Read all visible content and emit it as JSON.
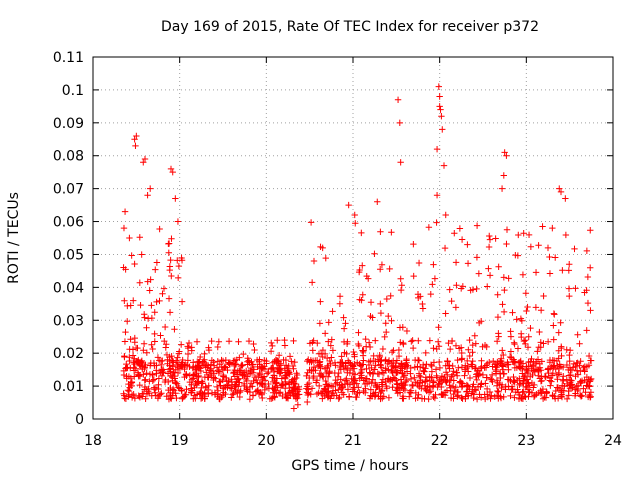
{
  "chart_data": {
    "type": "scatter",
    "title": "Day 169 of 2015, Rate Of TEC Index for receiver p372",
    "xlabel": "GPS time / hours",
    "ylabel": "ROTI / TECUs",
    "xlim": [
      18,
      24
    ],
    "ylim": [
      0,
      0.11
    ],
    "x_ticks": [
      18,
      19,
      20,
      21,
      22,
      23,
      24
    ],
    "x_tick_labels": [
      "18",
      "19",
      "20",
      "21",
      "22",
      "23",
      "24"
    ],
    "y_ticks": [
      0,
      0.01,
      0.02,
      0.03,
      0.04,
      0.05,
      0.06,
      0.07,
      0.08,
      0.09,
      0.1,
      0.11
    ],
    "y_tick_labels": [
      "0",
      "0.01",
      "0.02",
      "0.03",
      "0.04",
      "0.05",
      "0.06",
      "0.07",
      "0.08",
      "0.09",
      "0.1",
      "0.11"
    ],
    "grid": true,
    "marker": "+",
    "color": "#ff0000",
    "x_range_of_points": [
      18.35,
      23.75
    ],
    "dense_band_y": [
      0.005,
      0.02
    ],
    "outliers": [
      {
        "x": 18.48,
        "y": 0.085
      },
      {
        "x": 18.49,
        "y": 0.083
      },
      {
        "x": 18.5,
        "y": 0.086
      },
      {
        "x": 18.58,
        "y": 0.078
      },
      {
        "x": 18.6,
        "y": 0.079
      },
      {
        "x": 18.63,
        "y": 0.068
      },
      {
        "x": 18.66,
        "y": 0.07
      },
      {
        "x": 18.9,
        "y": 0.076
      },
      {
        "x": 18.92,
        "y": 0.075
      },
      {
        "x": 18.95,
        "y": 0.067
      },
      {
        "x": 18.98,
        "y": 0.06
      },
      {
        "x": 18.37,
        "y": 0.063
      },
      {
        "x": 18.42,
        "y": 0.055
      },
      {
        "x": 20.95,
        "y": 0.065
      },
      {
        "x": 21.02,
        "y": 0.062
      },
      {
        "x": 21.28,
        "y": 0.066
      },
      {
        "x": 21.52,
        "y": 0.097
      },
      {
        "x": 21.54,
        "y": 0.09
      },
      {
        "x": 21.55,
        "y": 0.078
      },
      {
        "x": 21.97,
        "y": 0.082
      },
      {
        "x": 21.99,
        "y": 0.101
      },
      {
        "x": 22.0,
        "y": 0.098
      },
      {
        "x": 22.0,
        "y": 0.095
      },
      {
        "x": 22.01,
        "y": 0.094
      },
      {
        "x": 22.02,
        "y": 0.092
      },
      {
        "x": 22.03,
        "y": 0.088
      },
      {
        "x": 22.05,
        "y": 0.077
      },
      {
        "x": 21.97,
        "y": 0.068
      },
      {
        "x": 22.07,
        "y": 0.062
      },
      {
        "x": 22.75,
        "y": 0.081
      },
      {
        "x": 22.77,
        "y": 0.08
      },
      {
        "x": 22.72,
        "y": 0.07
      },
      {
        "x": 22.74,
        "y": 0.074
      },
      {
        "x": 23.38,
        "y": 0.07
      },
      {
        "x": 23.4,
        "y": 0.069
      },
      {
        "x": 23.45,
        "y": 0.067
      },
      {
        "x": 23.3,
        "y": 0.058
      },
      {
        "x": 23.74,
        "y": 0.033
      },
      {
        "x": 22.32,
        "y": 0.053
      },
      {
        "x": 23.25,
        "y": 0.052
      },
      {
        "x": 20.55,
        "y": 0.048
      },
      {
        "x": 20.65,
        "y": 0.052
      }
    ]
  }
}
